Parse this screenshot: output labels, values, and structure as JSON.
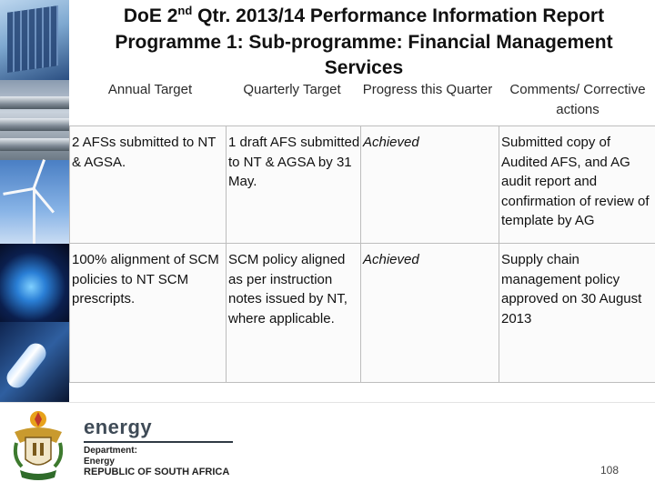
{
  "title": {
    "line1_prefix": "DoE 2",
    "line1_sup": "nd",
    "line1_suffix": " Qtr. 2013/14 Performance Information Report",
    "line2": "Programme 1: Sub-programme: Financial Management",
    "line3": "Services"
  },
  "table": {
    "headers": [
      "Annual Target",
      "Quarterly Target",
      "Progress this Quarter",
      "Comments/ Corrective actions"
    ],
    "rows": [
      [
        "2 AFSs submitted to NT & AGSA.",
        "1 draft AFS submitted to NT & AGSA by 31 May.",
        "Achieved",
        "Submitted copy of Audited AFS, and AG audit report and confirmation of review of template by AG"
      ],
      [
        "100% alignment of SCM policies to NT SCM prescripts.",
        "SCM policy aligned as per instruction notes issued by NT, where applicable.",
        "Achieved",
        "Supply chain management policy approved on 30 August 2013"
      ]
    ]
  },
  "footer": {
    "brand": "energy",
    "dept_line1": "Department:",
    "dept_line2": "Energy",
    "dept_line3": "REPUBLIC OF SOUTH AFRICA",
    "page_number": "108"
  },
  "colors": {
    "border": "#bdbdbd",
    "brand_text": "#3f4b57"
  }
}
